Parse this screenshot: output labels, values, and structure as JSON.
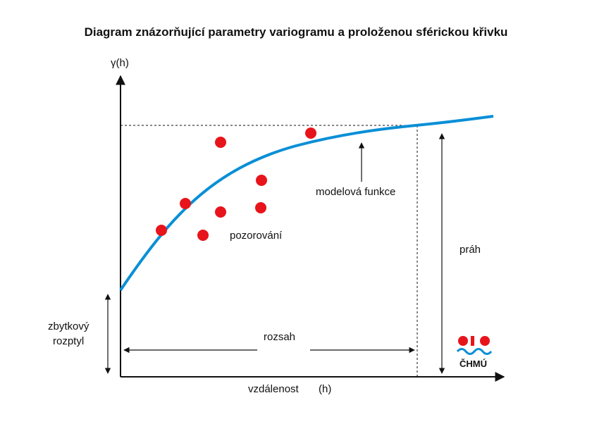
{
  "title": "Diagram znázorňující parametry variogramu a proloženou sférickou křivku",
  "labels": {
    "y_axis": "γ(h)",
    "x_axis": "vzdálenost",
    "x_axis_var": "(h)",
    "model": "modelová funkce",
    "observations": "pozorování",
    "sill": "práh",
    "range": "rozsah",
    "nugget_line1": "zbytkový",
    "nugget_line2": "rozptyl"
  },
  "logo": {
    "text": "ČHMÚ"
  },
  "colors": {
    "curve": "#0a8fd6",
    "points": "#e8141b",
    "axes": "#111111",
    "logo_red": "#e8141b",
    "logo_blue": "#0a8fd6"
  }
}
